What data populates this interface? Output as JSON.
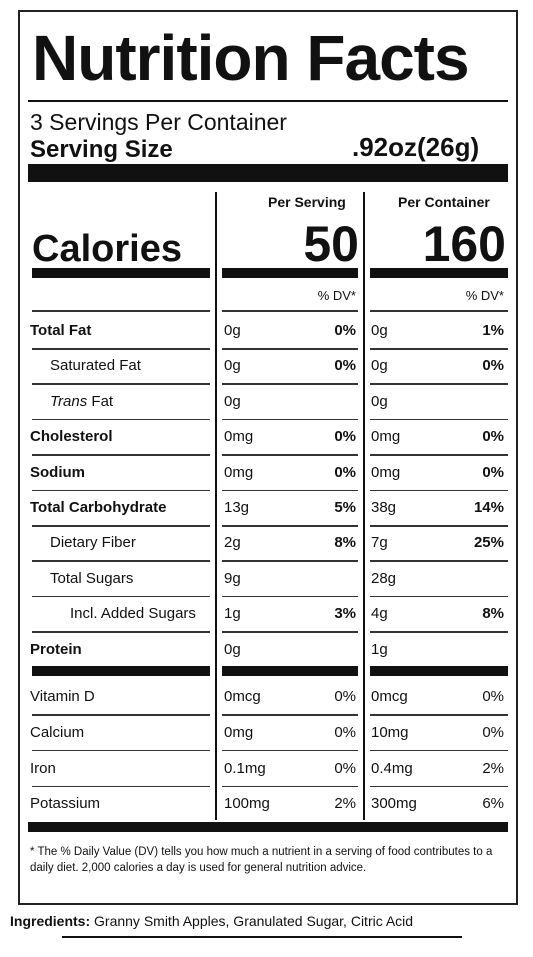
{
  "title": "Nutrition Facts",
  "servings_per_container": "3 Servings Per Container",
  "serving_size_label": "Serving Size",
  "serving_size_value": ".92oz(26g)",
  "columns": {
    "per_serving": "Per Serving",
    "per_container": "Per Container"
  },
  "calories": {
    "label": "Calories",
    "per_serving": "50",
    "per_container": "160"
  },
  "dv_header": "% DV*",
  "nutrients": [
    {
      "label": "Total Fat",
      "indent": 0,
      "bold": true,
      "italic_prefix": "",
      "s_amt": "0g",
      "s_dv": "0%",
      "c_amt": "0g",
      "c_dv": "1%",
      "dv_bold": true
    },
    {
      "label": "Saturated Fat",
      "indent": 1,
      "bold": false,
      "italic_prefix": "",
      "s_amt": "0g",
      "s_dv": "0%",
      "c_amt": "0g",
      "c_dv": "0%",
      "dv_bold": true
    },
    {
      "label": "Fat",
      "indent": 1,
      "bold": false,
      "italic_prefix": "Trans",
      "s_amt": "0g",
      "s_dv": "",
      "c_amt": "0g",
      "c_dv": "",
      "dv_bold": true
    },
    {
      "label": "Cholesterol",
      "indent": 0,
      "bold": true,
      "italic_prefix": "",
      "s_amt": "0mg",
      "s_dv": "0%",
      "c_amt": "0mg",
      "c_dv": "0%",
      "dv_bold": true
    },
    {
      "label": "Sodium",
      "indent": 0,
      "bold": true,
      "italic_prefix": "",
      "s_amt": "0mg",
      "s_dv": "0%",
      "c_amt": "0mg",
      "c_dv": "0%",
      "dv_bold": true
    },
    {
      "label": "Total Carbohydrate",
      "indent": 0,
      "bold": true,
      "italic_prefix": "",
      "s_amt": "13g",
      "s_dv": "5%",
      "c_amt": "38g",
      "c_dv": "14%",
      "dv_bold": true
    },
    {
      "label": "Dietary Fiber",
      "indent": 1,
      "bold": false,
      "italic_prefix": "",
      "s_amt": "2g",
      "s_dv": "8%",
      "c_amt": "7g",
      "c_dv": "25%",
      "dv_bold": true
    },
    {
      "label": "Total Sugars",
      "indent": 1,
      "bold": false,
      "italic_prefix": "",
      "s_amt": "9g",
      "s_dv": "",
      "c_amt": "28g",
      "c_dv": "",
      "dv_bold": true
    },
    {
      "label": "Incl. Added Sugars",
      "indent": 2,
      "bold": false,
      "italic_prefix": "",
      "s_amt": "1g",
      "s_dv": "3%",
      "c_amt": "4g",
      "c_dv": "8%",
      "dv_bold": true
    },
    {
      "label": "Protein",
      "indent": 0,
      "bold": true,
      "italic_prefix": "",
      "s_amt": "0g",
      "s_dv": "",
      "c_amt": "1g",
      "c_dv": "",
      "dv_bold": true
    }
  ],
  "vitamins": [
    {
      "label": "Vitamin D",
      "s_amt": "0mcg",
      "s_dv": "0%",
      "c_amt": "0mcg",
      "c_dv": "0%"
    },
    {
      "label": "Calcium",
      "s_amt": "0mg",
      "s_dv": "0%",
      "c_amt": "10mg",
      "c_dv": "0%"
    },
    {
      "label": "Iron",
      "s_amt": "0.1mg",
      "s_dv": "0%",
      "c_amt": "0.4mg",
      "c_dv": "2%"
    },
    {
      "label": "Potassium",
      "s_amt": "100mg",
      "s_dv": "2%",
      "c_amt": "300mg",
      "c_dv": "6%"
    }
  ],
  "footnote": "* The % Daily Value (DV) tells you how much a nutrient in a serving of food contributes to a daily diet. 2,000 calories a day is used for general nutrition advice.",
  "ingredients": {
    "label": "Ingredients:",
    "text": "Granny Smith Apples, Granulated Sugar, Citric Acid"
  }
}
